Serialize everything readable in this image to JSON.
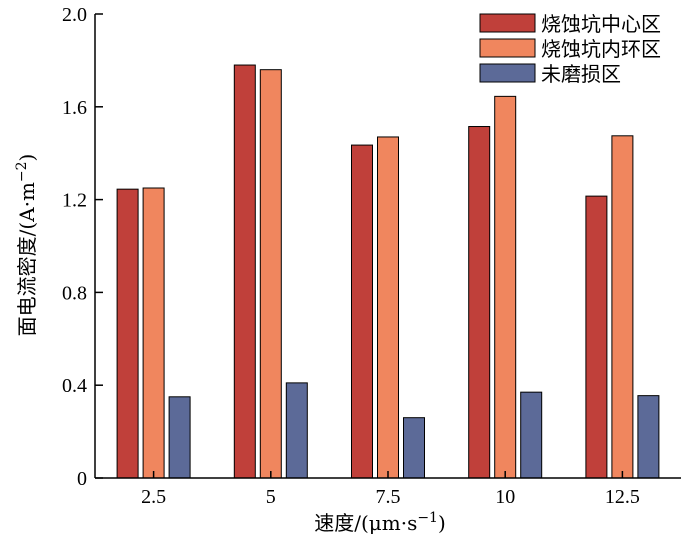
{
  "chart_data": {
    "type": "bar",
    "categories": [
      "2.5",
      "5",
      "7.5",
      "10",
      "12.5"
    ],
    "series": [
      {
        "name": "烧蚀坑中心区",
        "color": "#c0403a",
        "values": [
          1.245,
          1.78,
          1.435,
          1.515,
          1.215
        ]
      },
      {
        "name": "烧蚀坑内环区",
        "color": "#f0865e",
        "values": [
          1.25,
          1.76,
          1.47,
          1.645,
          1.475
        ]
      },
      {
        "name": "未磨损区",
        "color": "#5c6a98",
        "values": [
          0.35,
          0.41,
          0.26,
          0.37,
          0.355
        ]
      }
    ],
    "ylim": [
      0,
      2.0
    ],
    "yticks": [
      "0",
      "0.4",
      "0.8",
      "1.2",
      "1.6",
      "2.0"
    ],
    "ytick_values": [
      0,
      0.4,
      0.8,
      1.2,
      1.6,
      2.0
    ],
    "xlabel": {
      "prefix": "速度/(μm·s",
      "sup": "−1",
      "suffix": ")"
    },
    "ylabel": {
      "prefix": "面电流密度/(A·m",
      "sup": "−2",
      "suffix": ")"
    },
    "legend_position": "top-right",
    "grid": false
  }
}
